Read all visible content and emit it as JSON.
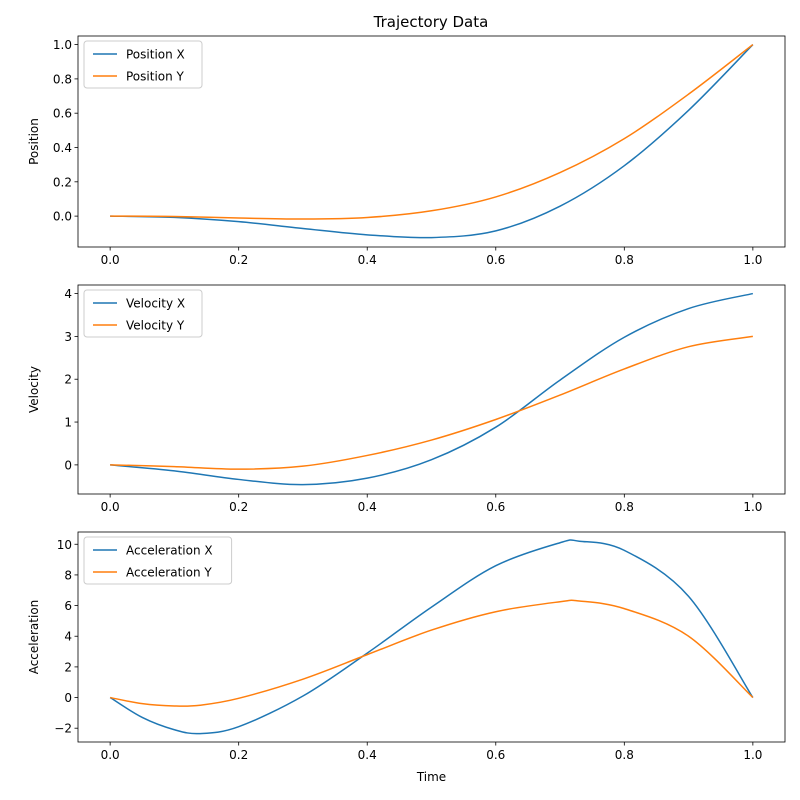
{
  "figure": {
    "title": "Trajectory Data",
    "colors": {
      "series_x": "#1f77b4",
      "series_y": "#ff7f0e"
    }
  },
  "chart_data": [
    {
      "type": "line",
      "ylabel": "Position",
      "xlabel": "",
      "xlim": [
        -0.05,
        1.05
      ],
      "ylim": [
        -0.18,
        1.05
      ],
      "xticks": [
        0.0,
        0.2,
        0.4,
        0.6,
        0.8,
        1.0
      ],
      "xtick_labels": [
        "0.0",
        "0.2",
        "0.4",
        "0.6",
        "0.8",
        "1.0"
      ],
      "yticks": [
        0.0,
        0.2,
        0.4,
        0.6,
        0.8,
        1.0
      ],
      "ytick_labels": [
        "0.0",
        "0.2",
        "0.4",
        "0.6",
        "0.8",
        "1.0"
      ],
      "legend": "top-left",
      "grid": false,
      "x": [
        0.0,
        0.1,
        0.2,
        0.3,
        0.4,
        0.5,
        0.6,
        0.7,
        0.8,
        0.9,
        1.0
      ],
      "series": [
        {
          "name": "Position X",
          "color": "#1f77b4",
          "values": [
            0.0,
            -0.007,
            -0.032,
            -0.072,
            -0.109,
            -0.125,
            -0.086,
            0.058,
            0.294,
            0.617,
            1.0
          ]
        },
        {
          "name": "Position Y",
          "color": "#ff7f0e",
          "values": [
            0.0,
            -0.002,
            -0.011,
            -0.017,
            -0.008,
            0.031,
            0.112,
            0.254,
            0.452,
            0.711,
            1.0
          ]
        }
      ]
    },
    {
      "type": "line",
      "ylabel": "Velocity",
      "xlabel": "",
      "xlim": [
        -0.05,
        1.05
      ],
      "ylim": [
        -0.68,
        4.2
      ],
      "xticks": [
        0.0,
        0.2,
        0.4,
        0.6,
        0.8,
        1.0
      ],
      "xtick_labels": [
        "0.0",
        "0.2",
        "0.4",
        "0.6",
        "0.8",
        "1.0"
      ],
      "yticks": [
        0,
        1,
        2,
        3,
        4
      ],
      "ytick_labels": [
        "0",
        "1",
        "2",
        "3",
        "4"
      ],
      "legend": "top-left",
      "grid": false,
      "x": [
        0.0,
        0.1,
        0.2,
        0.3,
        0.4,
        0.5,
        0.6,
        0.7,
        0.8,
        0.9,
        1.0
      ],
      "series": [
        {
          "name": "Velocity X",
          "color": "#1f77b4",
          "values": [
            0.0,
            -0.14,
            -0.34,
            -0.46,
            -0.31,
            0.12,
            0.88,
            1.98,
            2.98,
            3.65,
            4.0
          ]
        },
        {
          "name": "Velocity Y",
          "color": "#ff7f0e",
          "values": [
            0.0,
            -0.04,
            -0.1,
            -0.03,
            0.22,
            0.58,
            1.06,
            1.63,
            2.24,
            2.76,
            3.0
          ]
        }
      ]
    },
    {
      "type": "line",
      "ylabel": "Acceleration",
      "xlabel": "Time",
      "xlim": [
        -0.05,
        1.05
      ],
      "ylim": [
        -2.9,
        10.8
      ],
      "xticks": [
        0.0,
        0.2,
        0.4,
        0.6,
        0.8,
        1.0
      ],
      "xtick_labels": [
        "0.0",
        "0.2",
        "0.4",
        "0.6",
        "0.8",
        "1.0"
      ],
      "yticks": [
        -2,
        0,
        2,
        4,
        6,
        8,
        10
      ],
      "ytick_labels": [
        "−2",
        "0",
        "2",
        "4",
        "6",
        "8",
        "10"
      ],
      "legend": "top-left",
      "grid": false,
      "x": [
        0.0,
        0.05,
        0.1,
        0.14,
        0.2,
        0.3,
        0.4,
        0.5,
        0.6,
        0.7,
        0.73,
        0.8,
        0.9,
        1.0
      ],
      "series": [
        {
          "name": "Acceleration X",
          "color": "#1f77b4",
          "values": [
            0.0,
            -1.3,
            -2.1,
            -2.35,
            -1.9,
            0.1,
            2.9,
            5.9,
            8.6,
            10.1,
            10.2,
            9.6,
            6.6,
            0.0
          ]
        },
        {
          "name": "Acceleration Y",
          "color": "#ff7f0e",
          "values": [
            0.0,
            -0.4,
            -0.55,
            -0.5,
            -0.05,
            1.2,
            2.8,
            4.4,
            5.6,
            6.25,
            6.3,
            5.8,
            4.0,
            0.0
          ]
        }
      ]
    }
  ]
}
